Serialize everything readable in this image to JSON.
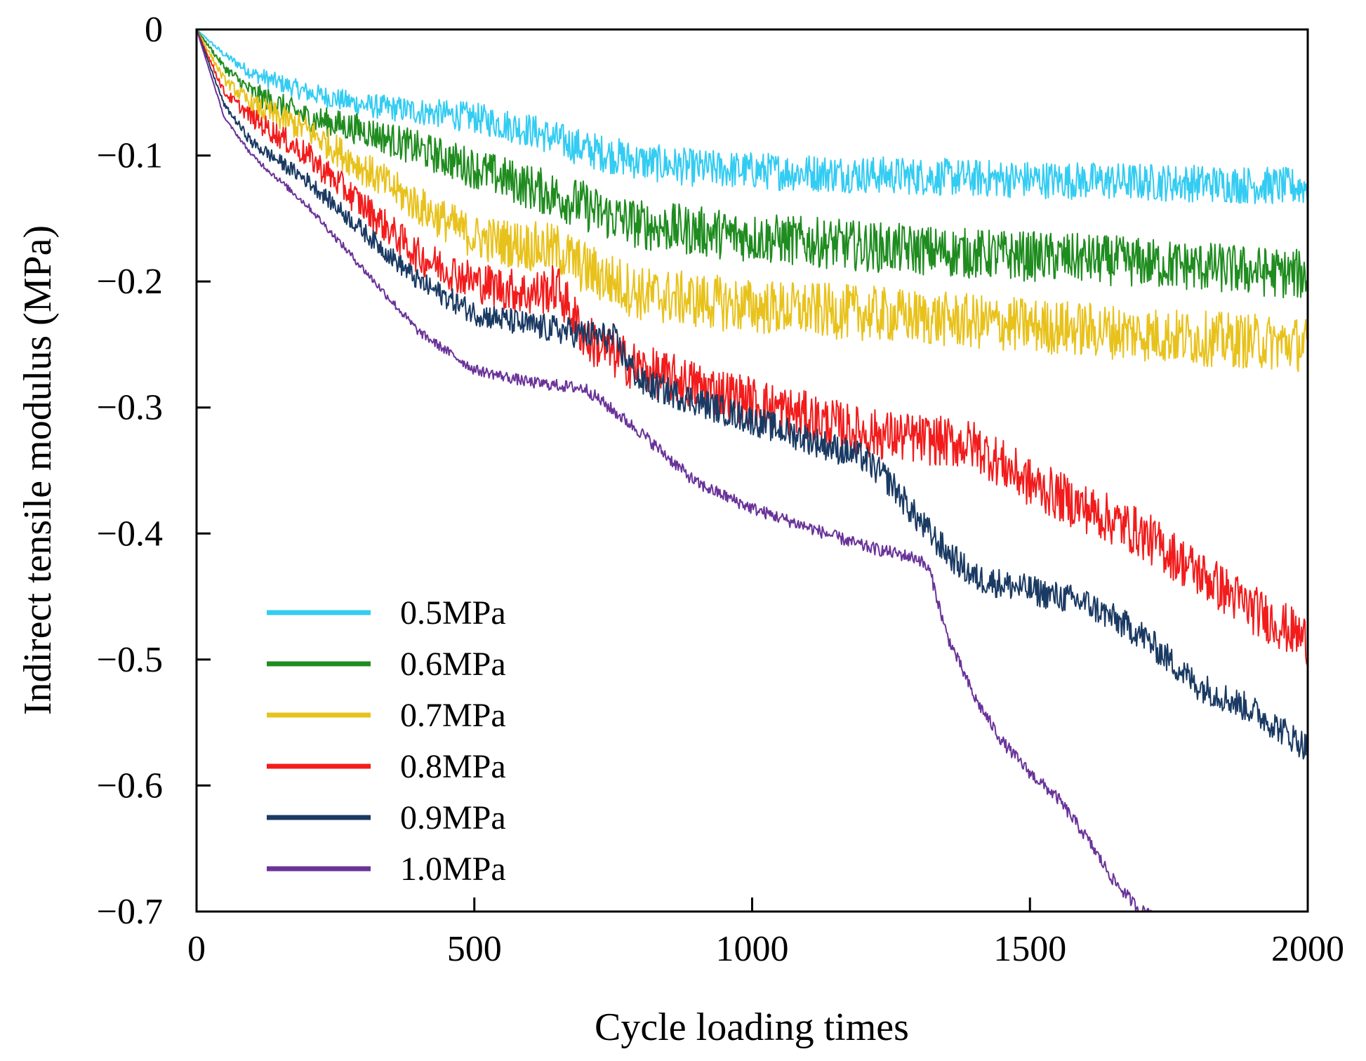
{
  "chart_data": {
    "type": "line",
    "title": "",
    "xlabel": "Cycle loading times",
    "ylabel": "Indirect tensile modulus (MPa)",
    "xlim": [
      0,
      2000
    ],
    "ylim": [
      -0.7,
      0
    ],
    "xticks": [
      0,
      500,
      1000,
      1500,
      2000
    ],
    "xtick_labels": [
      "0",
      "500",
      "1000",
      "1500",
      "2000"
    ],
    "yticks": [
      0,
      -0.1,
      -0.2,
      -0.3,
      -0.4,
      -0.5,
      -0.6,
      -0.7
    ],
    "ytick_labels": [
      "0",
      "−0.1",
      "−0.2",
      "−0.3",
      "−0.4",
      "−0.5",
      "−0.6",
      "−0.7"
    ],
    "grid": false,
    "legend_position": "bottom-left",
    "series": [
      {
        "name": "0.5MPa",
        "color": "#33ccf2",
        "x": [
          0,
          50,
          100,
          200,
          300,
          400,
          500,
          600,
          700,
          750,
          800,
          900,
          1000,
          1200,
          1400,
          1600,
          1800,
          2000
        ],
        "y": [
          0,
          -0.02,
          -0.035,
          -0.05,
          -0.06,
          -0.065,
          -0.07,
          -0.08,
          -0.095,
          -0.1,
          -0.105,
          -0.11,
          -0.112,
          -0.115,
          -0.118,
          -0.12,
          -0.122,
          -0.125
        ],
        "noise": 0.015
      },
      {
        "name": "0.6MPa",
        "color": "#1f8c1f",
        "x": [
          0,
          50,
          100,
          200,
          300,
          400,
          500,
          600,
          700,
          720,
          800,
          1000,
          1200,
          1400,
          1600,
          1800,
          2000
        ],
        "y": [
          0,
          -0.03,
          -0.05,
          -0.07,
          -0.08,
          -0.095,
          -0.11,
          -0.125,
          -0.14,
          -0.145,
          -0.155,
          -0.165,
          -0.172,
          -0.178,
          -0.182,
          -0.188,
          -0.195
        ],
        "noise": 0.02
      },
      {
        "name": "0.7MPa",
        "color": "#e8c21c",
        "x": [
          0,
          50,
          100,
          200,
          300,
          400,
          500,
          600,
          650,
          700,
          800,
          1000,
          1200,
          1400,
          1600,
          1800,
          2000
        ],
        "y": [
          0,
          -0.04,
          -0.06,
          -0.08,
          -0.11,
          -0.14,
          -0.165,
          -0.172,
          -0.175,
          -0.19,
          -0.21,
          -0.22,
          -0.225,
          -0.232,
          -0.238,
          -0.245,
          -0.25
        ],
        "noise": 0.022
      },
      {
        "name": "0.8MPa",
        "color": "#f21c1c",
        "x": [
          0,
          50,
          100,
          200,
          300,
          400,
          500,
          600,
          650,
          700,
          800,
          1000,
          1200,
          1400,
          1500,
          1600,
          1700,
          1800,
          1900,
          2000
        ],
        "y": [
          0,
          -0.05,
          -0.07,
          -0.1,
          -0.14,
          -0.18,
          -0.2,
          -0.21,
          -0.205,
          -0.245,
          -0.27,
          -0.295,
          -0.32,
          -0.33,
          -0.36,
          -0.38,
          -0.4,
          -0.43,
          -0.46,
          -0.485
        ],
        "noise": 0.02
      },
      {
        "name": "0.9MPa",
        "color": "#1a3a63",
        "x": [
          0,
          50,
          100,
          200,
          300,
          400,
          500,
          600,
          700,
          750,
          800,
          1000,
          1200,
          1250,
          1300,
          1350,
          1400,
          1500,
          1600,
          1700,
          1800,
          1900,
          2000
        ],
        "y": [
          0,
          -0.06,
          -0.09,
          -0.12,
          -0.16,
          -0.2,
          -0.225,
          -0.235,
          -0.242,
          -0.245,
          -0.28,
          -0.31,
          -0.34,
          -0.36,
          -0.39,
          -0.415,
          -0.435,
          -0.445,
          -0.455,
          -0.48,
          -0.52,
          -0.54,
          -0.57
        ],
        "noise": 0.012
      },
      {
        "name": "1.0MPa",
        "color": "#6a3399",
        "x": [
          0,
          50,
          100,
          200,
          300,
          400,
          500,
          600,
          700,
          800,
          900,
          1000,
          1100,
          1200,
          1300,
          1320,
          1350,
          1400,
          1450,
          1500,
          1550,
          1600,
          1650,
          1700,
          1720
        ],
        "y": [
          0,
          -0.07,
          -0.1,
          -0.14,
          -0.19,
          -0.24,
          -0.27,
          -0.28,
          -0.285,
          -0.32,
          -0.36,
          -0.38,
          -0.395,
          -0.41,
          -0.42,
          -0.43,
          -0.48,
          -0.53,
          -0.565,
          -0.59,
          -0.61,
          -0.64,
          -0.675,
          -0.7,
          -0.7
        ],
        "noise": 0.005
      }
    ]
  }
}
